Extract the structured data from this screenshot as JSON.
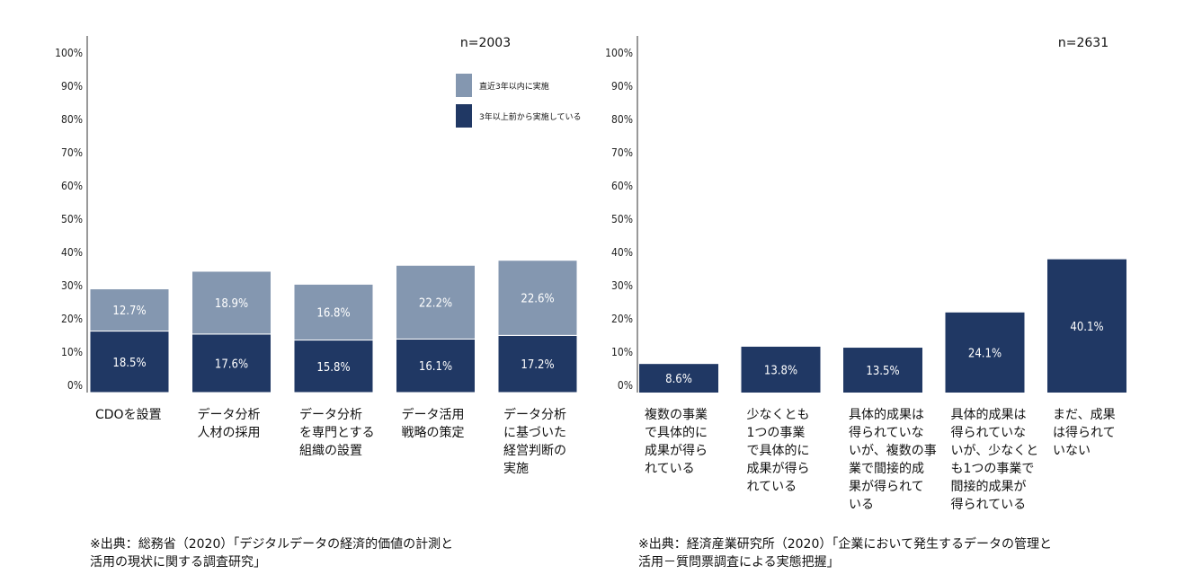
{
  "chart_data": [
    {
      "type": "bar",
      "stacked": true,
      "n_label": "n=2003",
      "categories": [
        [
          "CDOを設置"
        ],
        [
          "データ分析",
          "人材の採用"
        ],
        [
          "データ分析",
          "を専門とする",
          "組織の設置"
        ],
        [
          "データ活用",
          "戦略の策定"
        ],
        [
          "データ分析",
          "に基づいた",
          "経営判断の",
          "実施"
        ]
      ],
      "series": [
        {
          "name": "3年以上前から実施している",
          "color": "#203864",
          "values": [
            18.5,
            17.6,
            15.8,
            16.1,
            17.2
          ],
          "labels": [
            "18.5%",
            "17.6%",
            "15.8%",
            "16.1%",
            "17.2%"
          ]
        },
        {
          "name": "直近3年以内に実施",
          "color": "#8497b0",
          "values": [
            12.7,
            18.9,
            16.8,
            22.2,
            22.6
          ],
          "labels": [
            "12.7%",
            "18.9%",
            "16.8%",
            "22.2%",
            "22.6%"
          ]
        }
      ],
      "legend_order": [
        1,
        0
      ],
      "legend_position": "top-right",
      "y_ticks": [
        "0%",
        "10%",
        "20%",
        "30%",
        "40%",
        "50%",
        "60%",
        "70%",
        "80%",
        "90%",
        "100%"
      ],
      "ylim": [
        0,
        100
      ],
      "grid": false,
      "source": "※出典：総務省（2020）「デジタルデータの経済的価値の計測と\n活用の現状に関する調査研究」"
    },
    {
      "type": "bar",
      "stacked": false,
      "n_label": "n=2631",
      "categories": [
        [
          "複数の事業",
          "で具体的に",
          "成果が得ら",
          "れている"
        ],
        [
          "少なくとも",
          "1つの事業",
          "で具体的に",
          "成果が得ら",
          "れている"
        ],
        [
          "具体的成果は",
          "得られていな",
          "いが、複数の事",
          "業で間接的成",
          "果が得られて",
          "いる"
        ],
        [
          "具体的成果は",
          "得られていな",
          "いが、少なくと",
          "も1つの事業で",
          "間接的成果が",
          "得られている"
        ],
        [
          "まだ、成果",
          "は得られて",
          "いない"
        ]
      ],
      "series": [
        {
          "color": "#203864",
          "values": [
            8.6,
            13.8,
            13.5,
            24.1,
            40.1
          ],
          "labels": [
            "8.6%",
            "13.8%",
            "13.5%",
            "24.1%",
            "40.1%"
          ]
        }
      ],
      "y_ticks": [
        "0%",
        "10%",
        "20%",
        "30%",
        "40%",
        "50%",
        "60%",
        "70%",
        "80%",
        "90%",
        "100%"
      ],
      "ylim": [
        0,
        100
      ],
      "grid": false,
      "source": "※出典：経済産業研究所（2020）「企業において発生するデータの管理と\n活用－質問票調査による実態把握」"
    }
  ]
}
